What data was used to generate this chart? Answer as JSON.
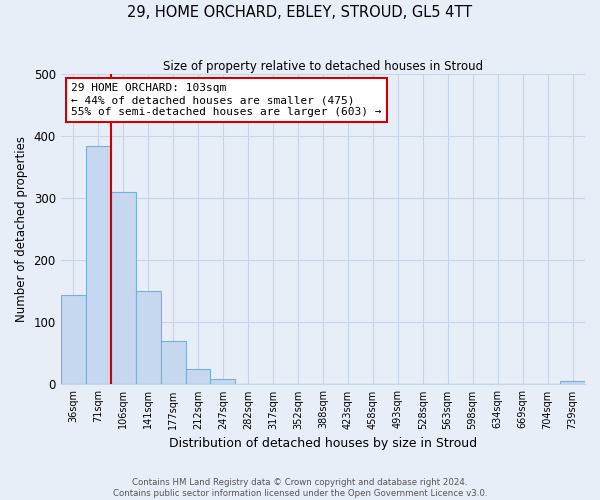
{
  "title": "29, HOME ORCHARD, EBLEY, STROUD, GL5 4TT",
  "subtitle": "Size of property relative to detached houses in Stroud",
  "xlabel": "Distribution of detached houses by size in Stroud",
  "ylabel": "Number of detached properties",
  "bin_labels": [
    "36sqm",
    "71sqm",
    "106sqm",
    "141sqm",
    "177sqm",
    "212sqm",
    "247sqm",
    "282sqm",
    "317sqm",
    "352sqm",
    "388sqm",
    "423sqm",
    "458sqm",
    "493sqm",
    "528sqm",
    "563sqm",
    "598sqm",
    "634sqm",
    "669sqm",
    "704sqm",
    "739sqm"
  ],
  "bar_heights": [
    144,
    385,
    310,
    150,
    70,
    25,
    8,
    0,
    0,
    0,
    0,
    0,
    0,
    0,
    0,
    0,
    0,
    0,
    0,
    0,
    5
  ],
  "bar_color": "#c5d8f0",
  "bar_edge_color": "#7aafd4",
  "marker_line_color": "#cc0000",
  "annotation_text": "29 HOME ORCHARD: 103sqm\n← 44% of detached houses are smaller (475)\n55% of semi-detached houses are larger (603) →",
  "annotation_box_color": "#ffffff",
  "annotation_box_edge_color": "#cc0000",
  "ylim": [
    0,
    500
  ],
  "grid_color": "#c8d4e8",
  "background_color": "#e8eef8",
  "footer_line1": "Contains HM Land Registry data © Crown copyright and database right 2024.",
  "footer_line2": "Contains public sector information licensed under the Open Government Licence v3.0."
}
